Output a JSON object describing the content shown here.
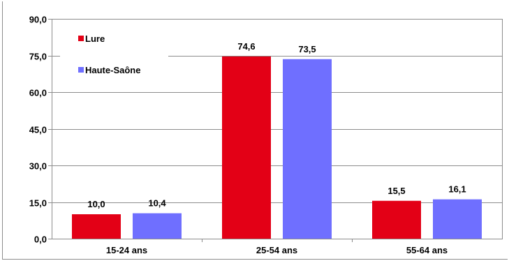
{
  "chart_data": {
    "type": "bar",
    "categories": [
      "15-24 ans",
      "25-54 ans",
      "55-64 ans"
    ],
    "series": [
      {
        "name": "Lure",
        "color": "#e30016",
        "values": [
          10.0,
          74.6,
          15.5
        ],
        "labels": [
          "10,0",
          "74,6",
          "15,5"
        ]
      },
      {
        "name": "Haute-Saône",
        "color": "#6f6fff",
        "values": [
          10.4,
          73.5,
          16.1
        ],
        "labels": [
          "10,4",
          "73,5",
          "16,1"
        ]
      }
    ],
    "ylim": [
      0,
      90
    ],
    "yticks": [
      0,
      15,
      30,
      45,
      60,
      75,
      90
    ],
    "ytick_labels": [
      "0,0",
      "15,0",
      "30,0",
      "45,0",
      "60,0",
      "75,0",
      "90,0"
    ],
    "grid": true,
    "legend_position": "top-left",
    "title": "",
    "xlabel": "",
    "ylabel": ""
  }
}
